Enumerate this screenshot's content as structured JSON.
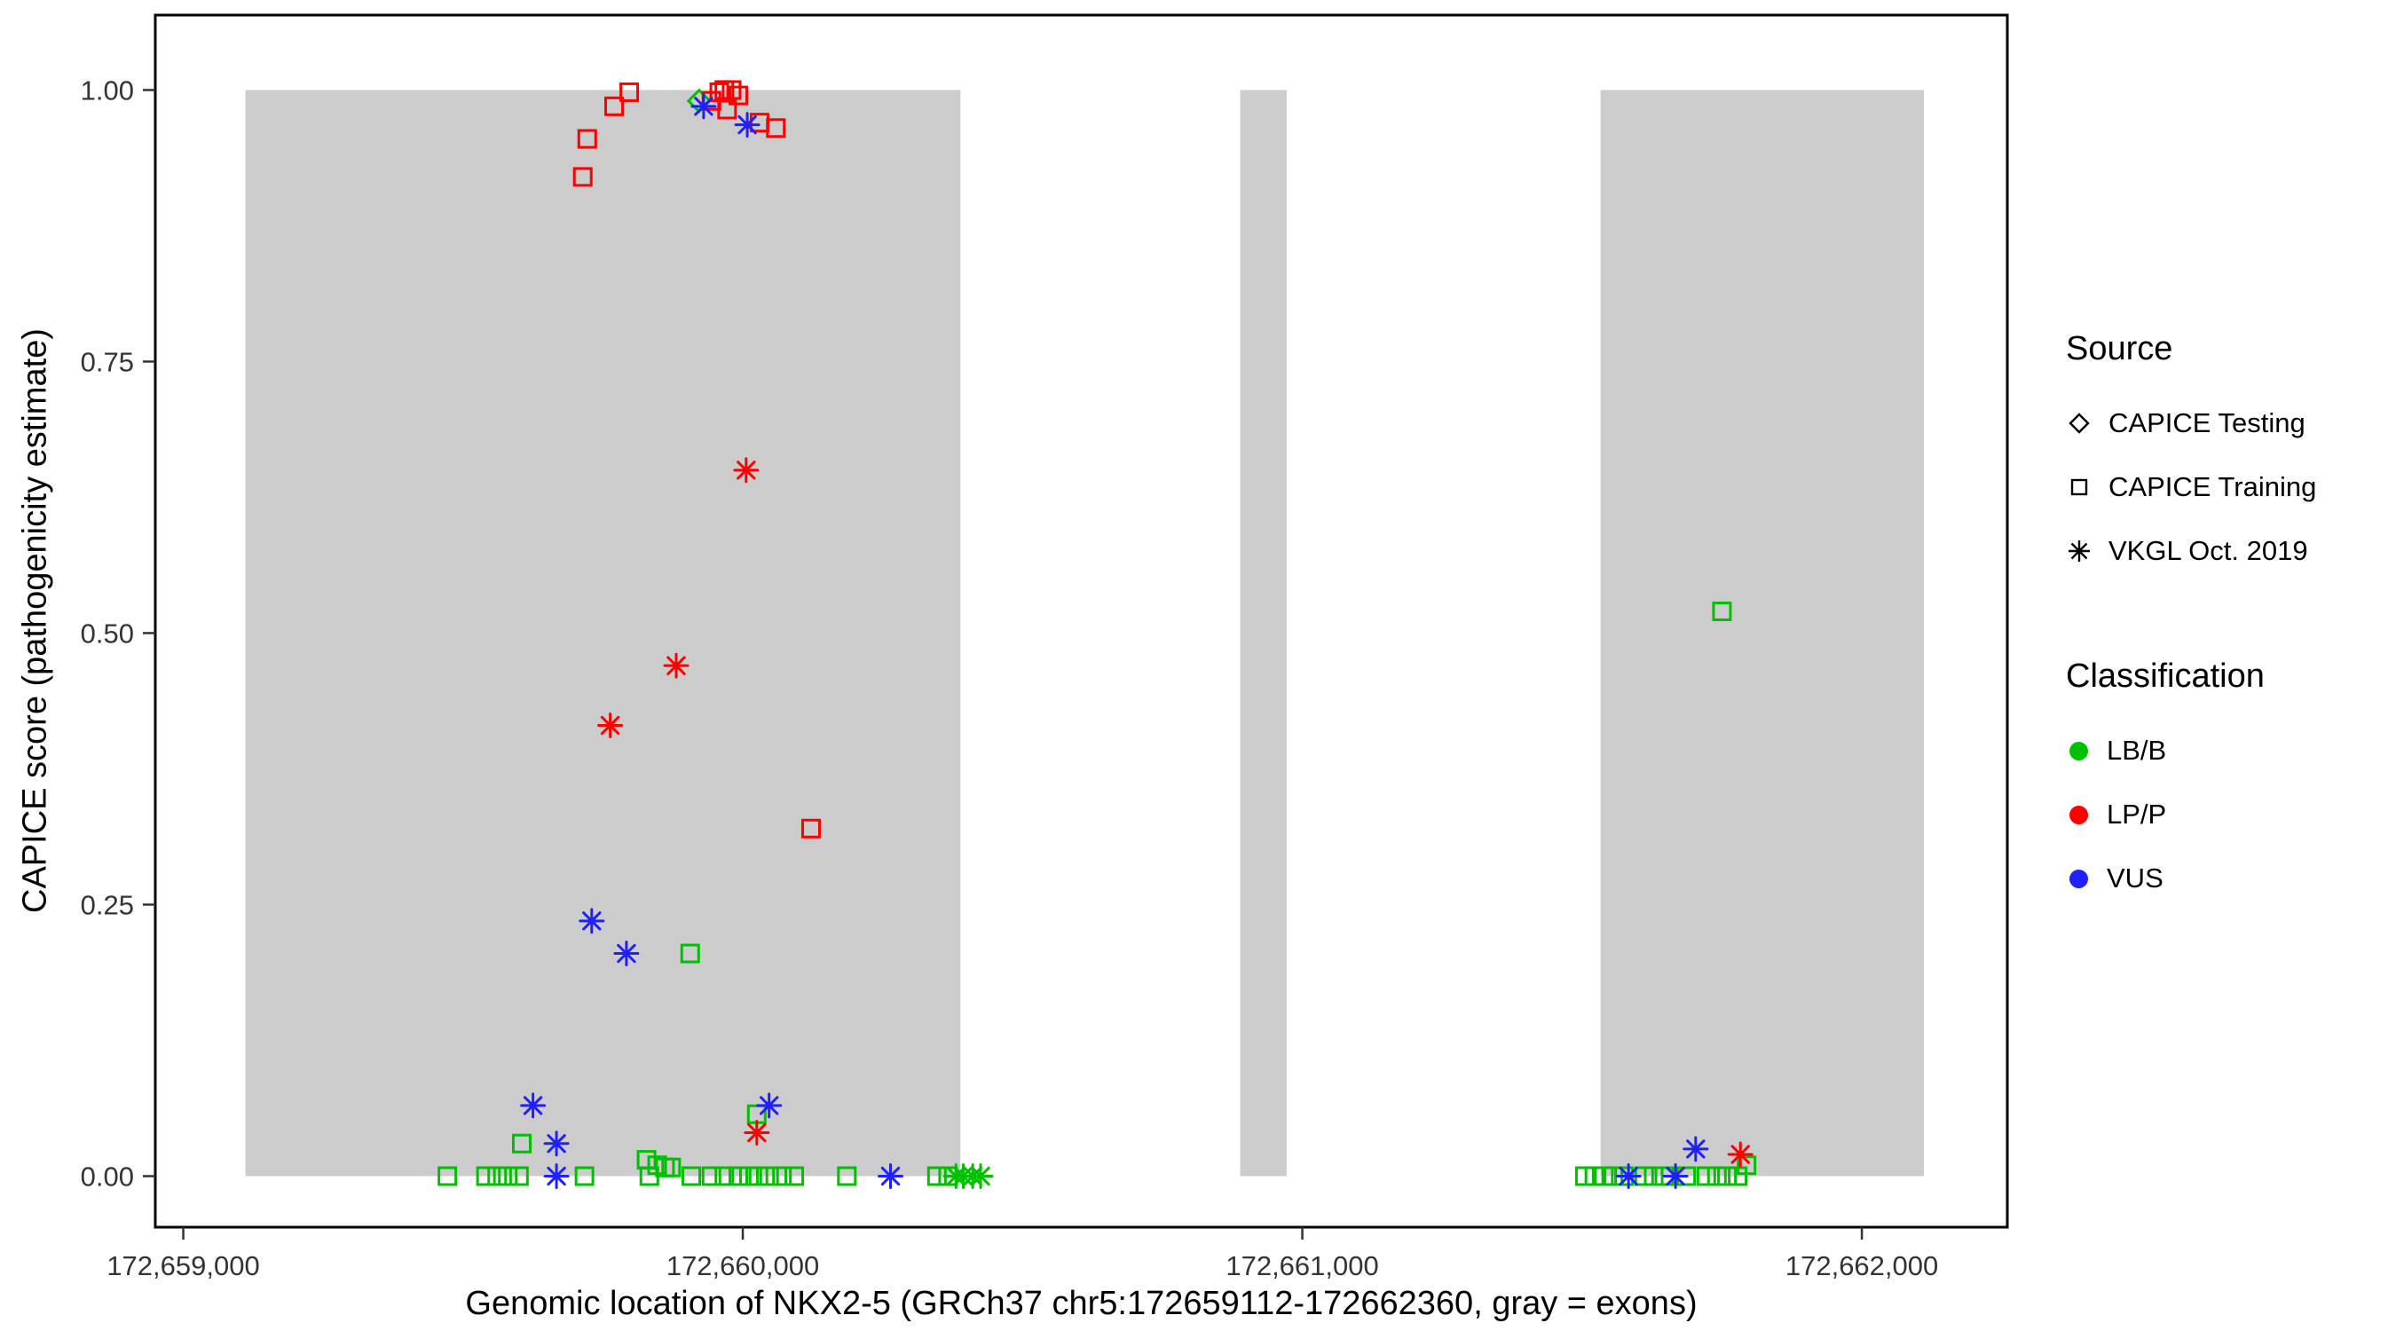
{
  "figure": {
    "x_axis_title": "Genomic location of NKX2-5 (GRCh37 chr5:172659112-172662360, gray = exons)",
    "y_axis_title": "CAPICE score (pathogenicity estimate)"
  },
  "legend": {
    "source": {
      "title": "Source",
      "items": [
        {
          "shape": "diamond",
          "label": "CAPICE Testing"
        },
        {
          "shape": "square",
          "label": "CAPICE Training"
        },
        {
          "shape": "asterisk",
          "label": "VKGL Oct. 2019"
        }
      ]
    },
    "classification": {
      "title": "Classification",
      "items": [
        {
          "label": "LB/B",
          "color": "#00C000"
        },
        {
          "label": "LP/P",
          "color": "#FF0000"
        },
        {
          "label": "VUS",
          "color": "#2020FF"
        }
      ]
    }
  },
  "chart_data": {
    "type": "scatter",
    "title": "",
    "xlabel": "Genomic location of NKX2-5 (GRCh37 chr5:172659112-172662360, gray = exons)",
    "ylabel": "CAPICE score (pathogenicity estimate)",
    "x_domain": [
      172658950,
      172662260
    ],
    "y_domain": [
      -0.047,
      1.069
    ],
    "x_ticks": [
      {
        "value": 172659000,
        "label": "172,659,000"
      },
      {
        "value": 172660000,
        "label": "172,660,000"
      },
      {
        "value": 172661000,
        "label": "172,661,000"
      },
      {
        "value": 172662000,
        "label": "172,662,000"
      }
    ],
    "y_ticks": [
      {
        "value": 0.0,
        "label": "0.00"
      },
      {
        "value": 0.25,
        "label": "0.25"
      },
      {
        "value": 0.5,
        "label": "0.50"
      },
      {
        "value": 0.75,
        "label": "0.75"
      },
      {
        "value": 1.0,
        "label": "1.00"
      }
    ],
    "exons": [
      {
        "start": 172659111,
        "end": 172660389
      },
      {
        "start": 172660889,
        "end": 172660972
      },
      {
        "start": 172661533,
        "end": 172662111
      }
    ],
    "exon_color": "#cccccc",
    "grid": false,
    "legend_position": "right",
    "shape_by_source": {
      "CAPICE Testing": "diamond",
      "CAPICE Training": "square",
      "VKGL Oct. 2019": "asterisk"
    },
    "color_by_classification": {
      "LB/B": "#00C000",
      "LP/P": "#FF0000",
      "VUS": "#2020FF"
    },
    "points": [
      {
        "x": 172659472,
        "y": 0.0,
        "source": "CAPICE Training",
        "classification": "LB/B"
      },
      {
        "x": 172659541,
        "y": 0.0,
        "source": "CAPICE Training",
        "classification": "LB/B"
      },
      {
        "x": 172659561,
        "y": 0.0,
        "source": "CAPICE Training",
        "classification": "LB/B"
      },
      {
        "x": 172659580,
        "y": 0.0,
        "source": "CAPICE Training",
        "classification": "LB/B"
      },
      {
        "x": 172659600,
        "y": 0.0,
        "source": "CAPICE Training",
        "classification": "LB/B"
      },
      {
        "x": 172659717,
        "y": 0.0,
        "source": "CAPICE Training",
        "classification": "LB/B"
      },
      {
        "x": 172659833,
        "y": 0.0,
        "source": "CAPICE Training",
        "classification": "LB/B"
      },
      {
        "x": 172659908,
        "y": 0.0,
        "source": "CAPICE Training",
        "classification": "LB/B"
      },
      {
        "x": 172659944,
        "y": 0.0,
        "source": "CAPICE Training",
        "classification": "LB/B"
      },
      {
        "x": 172659967,
        "y": 0.0,
        "source": "CAPICE Training",
        "classification": "LB/B"
      },
      {
        "x": 172659992,
        "y": 0.0,
        "source": "CAPICE Training",
        "classification": "LB/B"
      },
      {
        "x": 172660011,
        "y": 0.0,
        "source": "CAPICE Training",
        "classification": "LB/B"
      },
      {
        "x": 172660028,
        "y": 0.0,
        "source": "CAPICE Training",
        "classification": "LB/B"
      },
      {
        "x": 172660047,
        "y": 0.0,
        "source": "CAPICE Training",
        "classification": "LB/B"
      },
      {
        "x": 172660070,
        "y": 0.0,
        "source": "CAPICE Training",
        "classification": "LB/B"
      },
      {
        "x": 172660092,
        "y": 0.0,
        "source": "CAPICE Training",
        "classification": "LB/B"
      },
      {
        "x": 172660186,
        "y": 0.0,
        "source": "CAPICE Training",
        "classification": "LB/B"
      },
      {
        "x": 172660347,
        "y": 0.0,
        "source": "CAPICE Training",
        "classification": "LB/B"
      },
      {
        "x": 172660367,
        "y": 0.0,
        "source": "CAPICE Training",
        "classification": "LB/B"
      },
      {
        "x": 172659605,
        "y": 0.03,
        "source": "CAPICE Training",
        "classification": "LB/B"
      },
      {
        "x": 172659828,
        "y": 0.015,
        "source": "CAPICE Training",
        "classification": "LB/B"
      },
      {
        "x": 172659847,
        "y": 0.01,
        "source": "CAPICE Training",
        "classification": "LB/B"
      },
      {
        "x": 172659861,
        "y": 0.008,
        "source": "CAPICE Training",
        "classification": "LB/B"
      },
      {
        "x": 172659872,
        "y": 0.008,
        "source": "CAPICE Training",
        "classification": "LB/B"
      },
      {
        "x": 172659906,
        "y": 0.205,
        "source": "CAPICE Training",
        "classification": "LB/B"
      },
      {
        "x": 172660025,
        "y": 0.057,
        "source": "CAPICE Training",
        "classification": "LB/B"
      },
      {
        "x": 172661505,
        "y": 0.0,
        "source": "CAPICE Training",
        "classification": "LB/B"
      },
      {
        "x": 172661522,
        "y": 0.0,
        "source": "CAPICE Training",
        "classification": "LB/B"
      },
      {
        "x": 172661539,
        "y": 0.0,
        "source": "CAPICE Training",
        "classification": "LB/B"
      },
      {
        "x": 172661556,
        "y": 0.0,
        "source": "CAPICE Training",
        "classification": "LB/B"
      },
      {
        "x": 172661575,
        "y": 0.0,
        "source": "CAPICE Training",
        "classification": "LB/B"
      },
      {
        "x": 172661611,
        "y": 0.0,
        "source": "CAPICE Training",
        "classification": "LB/B"
      },
      {
        "x": 172661628,
        "y": 0.0,
        "source": "CAPICE Training",
        "classification": "LB/B"
      },
      {
        "x": 172661647,
        "y": 0.0,
        "source": "CAPICE Training",
        "classification": "LB/B"
      },
      {
        "x": 172661686,
        "y": 0.0,
        "source": "CAPICE Training",
        "classification": "LB/B"
      },
      {
        "x": 172661722,
        "y": 0.0,
        "source": "CAPICE Training",
        "classification": "LB/B"
      },
      {
        "x": 172661741,
        "y": 0.0,
        "source": "CAPICE Training",
        "classification": "LB/B"
      },
      {
        "x": 172661759,
        "y": 0.0,
        "source": "CAPICE Training",
        "classification": "LB/B"
      },
      {
        "x": 172661778,
        "y": 0.0,
        "source": "CAPICE Training",
        "classification": "LB/B"
      },
      {
        "x": 172661794,
        "y": 0.01,
        "source": "CAPICE Training",
        "classification": "LB/B"
      },
      {
        "x": 172661750,
        "y": 0.52,
        "source": "CAPICE Training",
        "classification": "LB/B"
      },
      {
        "x": 172659922,
        "y": 0.99,
        "source": "CAPICE Testing",
        "classification": "LB/B"
      },
      {
        "x": 172659714,
        "y": 0.92,
        "source": "CAPICE Training",
        "classification": "LP/P"
      },
      {
        "x": 172659722,
        "y": 0.955,
        "source": "CAPICE Training",
        "classification": "LP/P"
      },
      {
        "x": 172659770,
        "y": 0.985,
        "source": "CAPICE Training",
        "classification": "LP/P"
      },
      {
        "x": 172659797,
        "y": 0.998,
        "source": "CAPICE Training",
        "classification": "LP/P"
      },
      {
        "x": 172659944,
        "y": 0.99,
        "source": "CAPICE Training",
        "classification": "LP/P"
      },
      {
        "x": 172659958,
        "y": 0.998,
        "source": "CAPICE Training",
        "classification": "LP/P"
      },
      {
        "x": 172659967,
        "y": 1.0,
        "source": "CAPICE Training",
        "classification": "LP/P"
      },
      {
        "x": 172659980,
        "y": 1.0,
        "source": "CAPICE Training",
        "classification": "LP/P"
      },
      {
        "x": 172659992,
        "y": 0.995,
        "source": "CAPICE Training",
        "classification": "LP/P"
      },
      {
        "x": 172659972,
        "y": 0.982,
        "source": "CAPICE Training",
        "classification": "LP/P"
      },
      {
        "x": 172660030,
        "y": 0.97,
        "source": "CAPICE Training",
        "classification": "LP/P"
      },
      {
        "x": 172660059,
        "y": 0.965,
        "source": "CAPICE Training",
        "classification": "LP/P"
      },
      {
        "x": 172660122,
        "y": 0.32,
        "source": "CAPICE Training",
        "classification": "LP/P"
      },
      {
        "x": 172660006,
        "y": 0.65,
        "source": "VKGL Oct. 2019",
        "classification": "LP/P"
      },
      {
        "x": 172659881,
        "y": 0.47,
        "source": "VKGL Oct. 2019",
        "classification": "LP/P"
      },
      {
        "x": 172659763,
        "y": 0.415,
        "source": "VKGL Oct. 2019",
        "classification": "LP/P"
      },
      {
        "x": 172660025,
        "y": 0.04,
        "source": "VKGL Oct. 2019",
        "classification": "LP/P"
      },
      {
        "x": 172661783,
        "y": 0.02,
        "source": "VKGL Oct. 2019",
        "classification": "LP/P"
      },
      {
        "x": 172660381,
        "y": 0.0,
        "source": "VKGL Oct. 2019",
        "classification": "LB/B"
      },
      {
        "x": 172660394,
        "y": 0.0,
        "source": "VKGL Oct. 2019",
        "classification": "LB/B"
      },
      {
        "x": 172660411,
        "y": 0.0,
        "source": "VKGL Oct. 2019",
        "classification": "LB/B"
      },
      {
        "x": 172660425,
        "y": 0.0,
        "source": "VKGL Oct. 2019",
        "classification": "LB/B"
      },
      {
        "x": 172659930,
        "y": 0.985,
        "source": "VKGL Oct. 2019",
        "classification": "VUS"
      },
      {
        "x": 172660008,
        "y": 0.968,
        "source": "VKGL Oct. 2019",
        "classification": "VUS"
      },
      {
        "x": 172659730,
        "y": 0.235,
        "source": "VKGL Oct. 2019",
        "classification": "VUS"
      },
      {
        "x": 172659792,
        "y": 0.205,
        "source": "VKGL Oct. 2019",
        "classification": "VUS"
      },
      {
        "x": 172659625,
        "y": 0.065,
        "source": "VKGL Oct. 2019",
        "classification": "VUS"
      },
      {
        "x": 172660047,
        "y": 0.065,
        "source": "VKGL Oct. 2019",
        "classification": "VUS"
      },
      {
        "x": 172659667,
        "y": 0.03,
        "source": "VKGL Oct. 2019",
        "classification": "VUS"
      },
      {
        "x": 172659667,
        "y": 0.0,
        "source": "VKGL Oct. 2019",
        "classification": "VUS"
      },
      {
        "x": 172660264,
        "y": 0.0,
        "source": "VKGL Oct. 2019",
        "classification": "VUS"
      },
      {
        "x": 172661583,
        "y": 0.0,
        "source": "VKGL Oct. 2019",
        "classification": "VUS"
      },
      {
        "x": 172661667,
        "y": 0.0,
        "source": "VKGL Oct. 2019",
        "classification": "VUS"
      },
      {
        "x": 172661703,
        "y": 0.025,
        "source": "VKGL Oct. 2019",
        "classification": "VUS"
      }
    ]
  }
}
